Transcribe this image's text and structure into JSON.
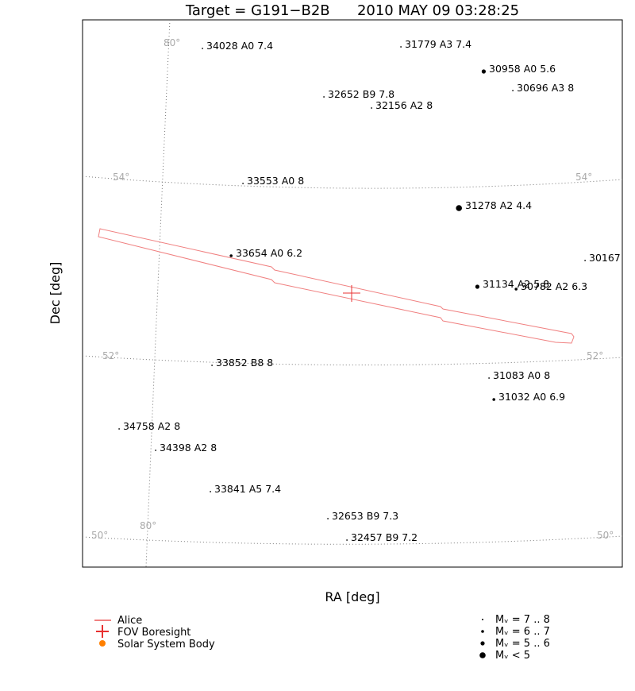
{
  "chart_data": {
    "type": "scatter",
    "title": "Target = G191−B2B      2010 MAY 09 03:28:25",
    "xlabel": "RA [deg]",
    "ylabel": "Dec [deg]",
    "grid_labels": {
      "ra": [
        "80°",
        "80°"
      ],
      "dec": [
        "54°",
        "54°",
        "52°",
        "52°",
        "50°",
        "50°"
      ]
    },
    "stars": [
      {
        "label": "34028 A0 7.4",
        "mag": 7.4
      },
      {
        "label": "31779 A3 7.4",
        "mag": 7.4
      },
      {
        "label": "30958 A0 5.6",
        "mag": 5.6
      },
      {
        "label": "30696 A3 8",
        "mag": 8
      },
      {
        "label": "32652 B9 7.8",
        "mag": 7.8
      },
      {
        "label": "32156 A2 8",
        "mag": 8
      },
      {
        "label": "33553 A0 8",
        "mag": 8
      },
      {
        "label": "31278 A2 4.4",
        "mag": 4.4
      },
      {
        "label": "33654 A0 6.2",
        "mag": 6.2
      },
      {
        "label": "30167",
        "mag": 7.5
      },
      {
        "label": "31134 A2 5.8",
        "mag": 5.8
      },
      {
        "label": "30782 A2 6.3",
        "mag": 6.3
      },
      {
        "label": "33852 B8 8",
        "mag": 8
      },
      {
        "label": "31083 A0 8",
        "mag": 8
      },
      {
        "label": "31032 A0 6.9",
        "mag": 6.9
      },
      {
        "label": "34758 A2 8",
        "mag": 8
      },
      {
        "label": "34398 A2 8",
        "mag": 8
      },
      {
        "label": "33841 A5 7.4",
        "mag": 7.4
      },
      {
        "label": "32653 B9 7.3",
        "mag": 7.3
      },
      {
        "label": "32457 B9 7.2",
        "mag": 7.2
      }
    ],
    "legend": {
      "placement": "bottom",
      "series": [
        {
          "name": "Alice",
          "color": "#f08080",
          "icon": "line"
        },
        {
          "name": "FOV Boresight",
          "color": "#e83030",
          "icon": "plus"
        },
        {
          "name": "Solar System Body",
          "color": "#ff7f00",
          "icon": "dot"
        }
      ],
      "magnitudes": [
        {
          "label": "Mᵥ = 7 .. 8",
          "size": 1
        },
        {
          "label": "Mᵥ = 6 .. 7",
          "size": 2
        },
        {
          "label": "Mᵥ = 5 .. 6",
          "size": 3
        },
        {
          "label": "Mᵥ < 5",
          "size": 4
        }
      ]
    },
    "colors": {
      "alice": "#f08080",
      "boresight": "#e83030",
      "solar": "#ff7f00",
      "grid": "#777777"
    }
  }
}
